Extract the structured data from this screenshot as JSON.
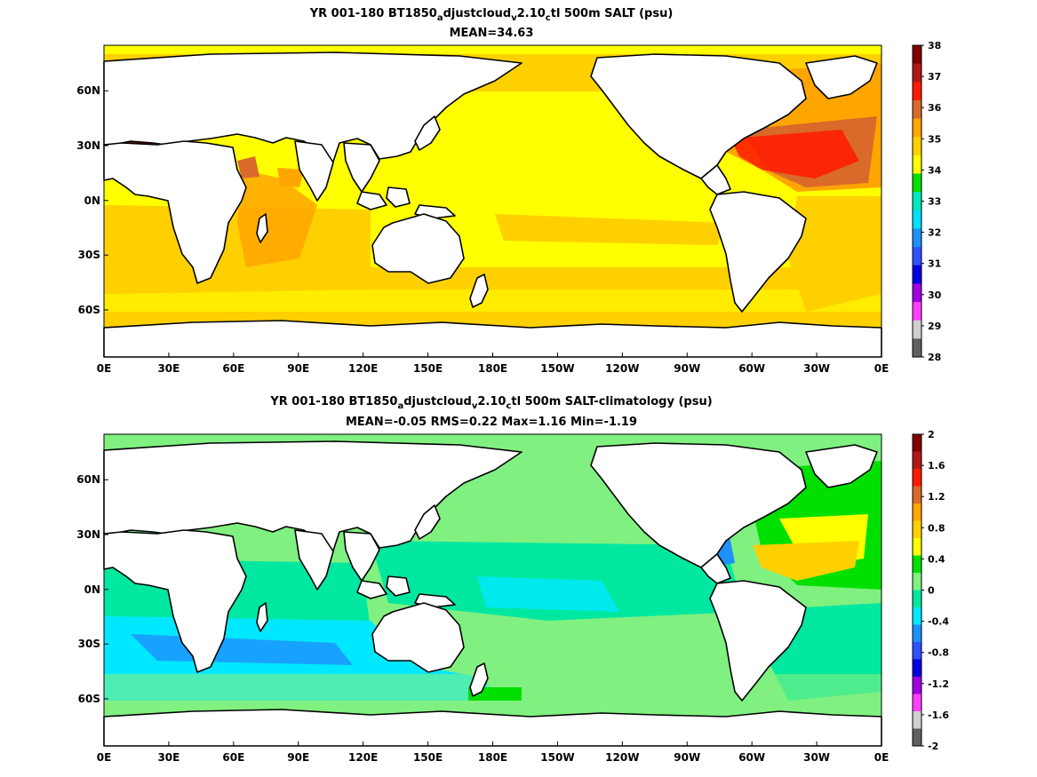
{
  "chart_data": [
    {
      "type": "heatmap",
      "title_prefix": "YR 001-180 BT1850",
      "title_sub1": "a",
      "title_mid1": "djustcloud",
      "title_sub2": "v",
      "title_mid2": "2.10",
      "title_sub3": "c",
      "title_suffix": "tl 500m SALT (psu)",
      "stats": "MEAN=34.63",
      "x_ticks": [
        "0E",
        "30E",
        "60E",
        "90E",
        "120E",
        "150E",
        "180E",
        "150W",
        "120W",
        "90W",
        "60W",
        "30W",
        "0E"
      ],
      "y_ticks": [
        "60N",
        "30N",
        "0N",
        "30S",
        "60S"
      ],
      "colorbar": {
        "ticks": [
          "38",
          "37",
          "36",
          "35",
          "34",
          "33",
          "32",
          "31",
          "30",
          "29",
          "28"
        ],
        "colors": [
          "#7f0000",
          "#b01818",
          "#ff1a00",
          "#d96a2a",
          "#ffa500",
          "#ffd000",
          "#ffff00",
          "#00e000",
          "#00e8c0",
          "#00e0ff",
          "#1e90ff",
          "#3050ff",
          "#0000e0",
          "#a000e0",
          "#ff40ff",
          "#d0d0d0",
          "#606060"
        ]
      }
    },
    {
      "type": "heatmap",
      "title_prefix": "YR 001-180 BT1850",
      "title_sub1": "a",
      "title_mid1": "djustcloud",
      "title_sub2": "v",
      "title_mid2": "2.10",
      "title_sub3": "c",
      "title_suffix": "tl 500m SALT-climatology (psu)",
      "stats": "MEAN=-0.05   RMS=0.22   Max=1.16   Min=-1.19",
      "x_ticks": [
        "0E",
        "30E",
        "60E",
        "90E",
        "120E",
        "150E",
        "180E",
        "150W",
        "120W",
        "90W",
        "60W",
        "30W",
        "0E"
      ],
      "y_ticks": [
        "60N",
        "30N",
        "0N",
        "30S",
        "60S"
      ],
      "colorbar": {
        "ticks": [
          "2",
          "1.6",
          "1.2",
          "0.8",
          "0.4",
          "0",
          "-0.4",
          "-0.8",
          "-1.2",
          "-1.6",
          "-2"
        ],
        "colors": [
          "#7f0000",
          "#b01818",
          "#ff1a00",
          "#d96a2a",
          "#ffa500",
          "#ffd000",
          "#ffff00",
          "#00e000",
          "#80f080",
          "#00e8a0",
          "#00e8ff",
          "#1e90ff",
          "#3050ff",
          "#0000e0",
          "#a000e0",
          "#ff40ff",
          "#d0d0d0",
          "#606060"
        ]
      }
    }
  ]
}
